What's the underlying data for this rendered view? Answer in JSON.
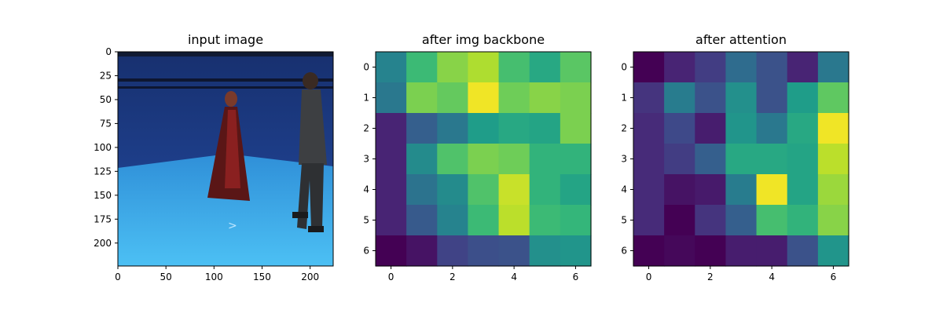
{
  "chart_data": [
    {
      "type": "image",
      "title": "input image",
      "xlim": [
        0,
        224
      ],
      "ylim": [
        224,
        0
      ],
      "xticks": [
        0,
        50,
        100,
        150,
        200
      ],
      "yticks": [
        0,
        25,
        50,
        75,
        100,
        125,
        150,
        175,
        200
      ],
      "description_colors": {
        "wall": "#1f3f8f",
        "floor": "#3aa6e8",
        "truss": "#111a2e"
      },
      "figures": [
        {
          "name": "woman-in-red-robe",
          "x_center": 118,
          "top": 38,
          "bottom": 152
        },
        {
          "name": "man-in-grey-suit",
          "x_center": 208,
          "top": 20,
          "bottom": 188
        }
      ]
    },
    {
      "type": "heatmap",
      "title": "after img backbone",
      "colormap": "viridis",
      "xticks": [
        0,
        2,
        4,
        6
      ],
      "yticks": [
        0,
        1,
        2,
        3,
        4,
        5,
        6
      ],
      "values": [
        [
          0.45,
          0.68,
          0.82,
          0.88,
          0.7,
          0.6,
          0.74
        ],
        [
          0.4,
          0.8,
          0.76,
          0.98,
          0.78,
          0.82,
          0.8
        ],
        [
          0.1,
          0.3,
          0.4,
          0.55,
          0.6,
          0.58,
          0.8
        ],
        [
          0.1,
          0.48,
          0.72,
          0.8,
          0.78,
          0.65,
          0.65
        ],
        [
          0.1,
          0.38,
          0.48,
          0.72,
          0.92,
          0.65,
          0.58
        ],
        [
          0.1,
          0.28,
          0.45,
          0.68,
          0.9,
          0.68,
          0.66
        ],
        [
          0.0,
          0.05,
          0.2,
          0.24,
          0.25,
          0.5,
          0.52
        ]
      ]
    },
    {
      "type": "heatmap",
      "title": "after attention",
      "colormap": "viridis",
      "xticks": [
        0,
        2,
        4,
        6
      ],
      "yticks": [
        0,
        1,
        2,
        3,
        4,
        5,
        6
      ],
      "values": [
        [
          0.0,
          0.1,
          0.18,
          0.35,
          0.25,
          0.1,
          0.4
        ],
        [
          0.15,
          0.42,
          0.25,
          0.5,
          0.25,
          0.55,
          0.75
        ],
        [
          0.12,
          0.22,
          0.08,
          0.52,
          0.4,
          0.6,
          0.98
        ],
        [
          0.12,
          0.18,
          0.3,
          0.6,
          0.6,
          0.58,
          0.9
        ],
        [
          0.12,
          0.05,
          0.07,
          0.42,
          0.98,
          0.58,
          0.85
        ],
        [
          0.12,
          0.0,
          0.15,
          0.3,
          0.7,
          0.65,
          0.82
        ],
        [
          0.0,
          0.02,
          0.0,
          0.08,
          0.08,
          0.25,
          0.52
        ]
      ]
    }
  ]
}
